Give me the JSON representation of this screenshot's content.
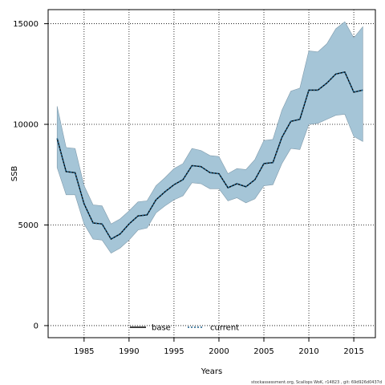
{
  "chart_data": {
    "type": "line",
    "xlabel": "Years",
    "ylabel": "SSB",
    "xlim": [
      1981,
      2017.4
    ],
    "ylim": [
      -600,
      15700
    ],
    "x_ticks": [
      "1985",
      "1990",
      "1995",
      "2000",
      "2005",
      "2010",
      "2015"
    ],
    "y_ticks": [
      "0",
      "5000",
      "10000",
      "15000"
    ],
    "grid": true,
    "legend_position": "bottom-center",
    "x": [
      1982,
      1983,
      1984,
      1985,
      1986,
      1987,
      1988,
      1989,
      1990,
      1991,
      1992,
      1993,
      1994,
      1995,
      1996,
      1997,
      1998,
      1999,
      2000,
      2001,
      2002,
      2003,
      2004,
      2005,
      2006,
      2007,
      2008,
      2009,
      2010,
      2011,
      2012,
      2013,
      2014,
      2015,
      2016
    ],
    "band": {
      "color": "#a5c5d7",
      "upper": [
        10900,
        8850,
        8800,
        6950,
        6000,
        5950,
        5050,
        5300,
        5700,
        6150,
        6200,
        6950,
        7350,
        7800,
        8050,
        8800,
        8700,
        8450,
        8400,
        7550,
        7800,
        7750,
        8250,
        9200,
        9250,
        10700,
        11650,
        11800,
        13650,
        13600,
        14000,
        14750,
        15100,
        14300,
        14850
      ],
      "lower": [
        7850,
        6500,
        6500,
        5050,
        4300,
        4250,
        3600,
        3850,
        4250,
        4750,
        4850,
        5600,
        5950,
        6250,
        6450,
        7100,
        7050,
        6800,
        6800,
        6200,
        6350,
        6100,
        6300,
        6950,
        7000,
        8050,
        8800,
        8750,
        10000,
        10050,
        10250,
        10450,
        10500,
        9400,
        9150
      ]
    },
    "series": [
      {
        "name": "base",
        "color": "#000000",
        "style": "solid",
        "values": [
          9300,
          7650,
          7600,
          6050,
          5100,
          5050,
          4300,
          4550,
          5050,
          5450,
          5500,
          6250,
          6650,
          7000,
          7250,
          7950,
          7900,
          7600,
          7550,
          6850,
          7050,
          6900,
          7250,
          8050,
          8100,
          9350,
          10150,
          10250,
          11700,
          11700,
          12050,
          12500,
          12600,
          11600,
          11700
        ]
      },
      {
        "name": "current",
        "color": "#1a5f8a",
        "style": "dashed",
        "values": [
          9300,
          7650,
          7600,
          6050,
          5100,
          5050,
          4300,
          4550,
          5050,
          5450,
          5500,
          6250,
          6650,
          7000,
          7250,
          7950,
          7900,
          7600,
          7550,
          6850,
          7050,
          6900,
          7250,
          8050,
          8100,
          9350,
          10150,
          10250,
          11700,
          11700,
          12050,
          12500,
          12600,
          11600,
          11700
        ]
      }
    ]
  },
  "footer": "stockassessment.org,  Scallops  WoK,  r14823 ,  git:  69d926d0437d"
}
